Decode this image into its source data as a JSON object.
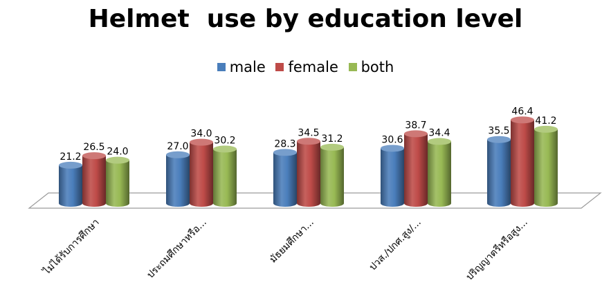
{
  "chart_data": {
    "type": "bar",
    "title": "Helmet  use by education level",
    "categories": [
      "ไม่ได้รับการศึกษา",
      "ประถมศึกษาหรือ...",
      "มัธยมศึกษา...",
      "ปวส./ปกศ.สูง/...",
      "ปริญญาตรีหรือสูง..."
    ],
    "series": [
      {
        "name": "male",
        "color": "#4A7EBB",
        "values": [
          21.2,
          27.0,
          28.3,
          30.6,
          35.5
        ]
      },
      {
        "name": "female",
        "color": "#BE4B48",
        "values": [
          26.5,
          34.0,
          34.5,
          38.7,
          46.4
        ]
      },
      {
        "name": "both",
        "color": "#98B954",
        "values": [
          24.0,
          30.2,
          31.2,
          34.4,
          41.2
        ]
      }
    ],
    "value_labels": [
      [
        "21.2",
        "27.0",
        "28.3",
        "30.6",
        "35.5"
      ],
      [
        "26.5",
        "34.0",
        "34.5",
        "38.7",
        "46.4"
      ],
      [
        "24.0",
        "30.2",
        "31.2",
        "34.4",
        "41.2"
      ]
    ],
    "xlabel": "",
    "ylabel": "",
    "ylim": [
      0,
      50
    ],
    "grid": false,
    "legend_position": "top"
  }
}
